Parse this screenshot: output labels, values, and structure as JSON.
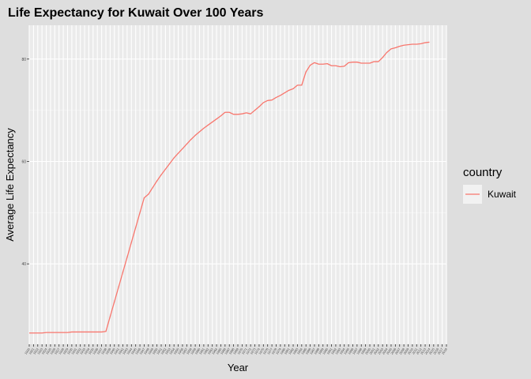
{
  "chart_data": {
    "type": "line",
    "title": "Life Expectancy for Kuwait Over 100 Years",
    "xlabel": "Year",
    "ylabel": "Average Life Expectancy",
    "xlim": [
      1920,
      2018
    ],
    "ylim": [
      24.3,
      86.6
    ],
    "y_ticks": [
      40,
      60,
      80
    ],
    "grid": true,
    "legend": {
      "title": "country",
      "position": "right"
    },
    "colors": {
      "series": "#F8766D",
      "panel": "#EBEBEB",
      "grid": "#FFFFFF",
      "background": "#DEDEDE"
    },
    "series": [
      {
        "name": "Kuwait",
        "x": [
          1920,
          1921,
          1922,
          1923,
          1924,
          1925,
          1926,
          1927,
          1928,
          1929,
          1930,
          1931,
          1932,
          1933,
          1934,
          1935,
          1936,
          1937,
          1938,
          1939,
          1940,
          1941,
          1942,
          1943,
          1944,
          1945,
          1946,
          1947,
          1948,
          1949,
          1950,
          1951,
          1952,
          1953,
          1954,
          1955,
          1956,
          1957,
          1958,
          1959,
          1960,
          1961,
          1962,
          1963,
          1964,
          1965,
          1966,
          1967,
          1968,
          1969,
          1970,
          1971,
          1972,
          1973,
          1974,
          1975,
          1976,
          1977,
          1978,
          1979,
          1980,
          1981,
          1982,
          1983,
          1984,
          1985,
          1986,
          1987,
          1988,
          1989,
          1990,
          1991,
          1992,
          1993,
          1994,
          1995,
          1996,
          1997,
          1998,
          1999,
          2000,
          2001,
          2002,
          2003,
          2004,
          2005,
          2006,
          2007,
          2008,
          2009,
          2010,
          2011,
          2012,
          2013,
          2014,
          2015,
          2016,
          2017,
          2018
        ],
        "values": [
          26.5,
          26.5,
          26.5,
          26.5,
          26.6,
          26.6,
          26.6,
          26.6,
          26.6,
          26.6,
          26.7,
          26.7,
          26.7,
          26.7,
          26.7,
          26.7,
          26.7,
          26.7,
          26.8,
          29.7,
          32.6,
          35.5,
          38.4,
          41.3,
          44.2,
          47.1,
          50.0,
          52.9,
          53.6,
          54.9,
          56.2,
          57.4,
          58.5,
          59.6,
          60.7,
          61.6,
          62.5,
          63.4,
          64.3,
          65.1,
          65.8,
          66.5,
          67.1,
          67.7,
          68.3,
          68.9,
          69.6,
          69.6,
          69.2,
          69.2,
          69.3,
          69.5,
          69.3,
          70.0,
          70.7,
          71.5,
          71.9,
          72.0,
          72.5,
          72.9,
          73.4,
          73.9,
          74.2,
          74.9,
          74.9,
          77.5,
          78.8,
          79.3,
          79.0,
          79.0,
          79.1,
          78.7,
          78.7,
          78.5,
          78.6,
          79.3,
          79.4,
          79.4,
          79.2,
          79.2,
          79.2,
          79.5,
          79.5,
          80.3,
          81.3,
          82.0,
          82.2,
          82.5,
          82.7,
          82.8,
          82.9,
          82.9,
          83.0,
          83.2,
          83.3,
          null,
          null,
          null,
          null
        ]
      }
    ]
  }
}
